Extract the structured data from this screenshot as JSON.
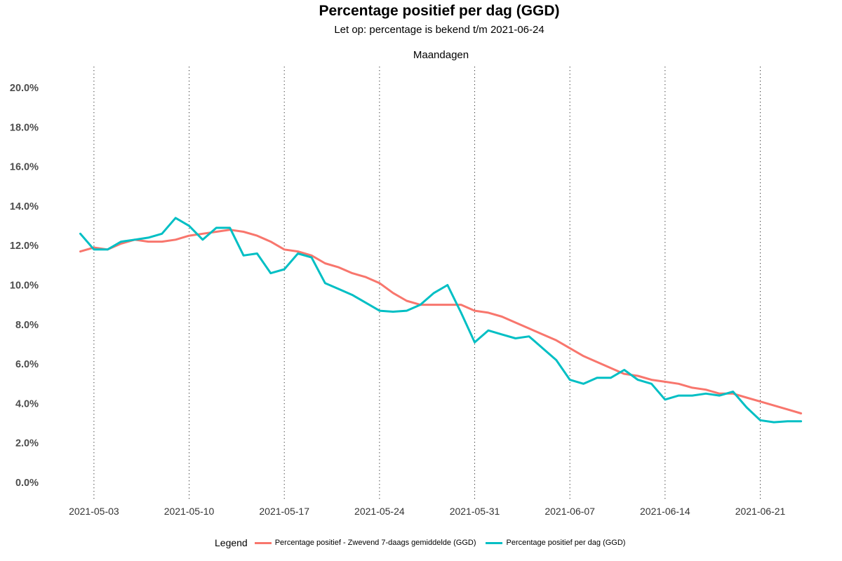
{
  "chart_data": {
    "type": "line",
    "title": "Percentage positief per dag (GGD)",
    "subtitle": "Let op: percentage is bekend t/m 2021-06-24",
    "top_axis_label": "Maandagen",
    "xlabel": "",
    "ylabel": "",
    "ylim": [
      -1,
      21
    ],
    "y_ticks": [
      0,
      2,
      4,
      6,
      8,
      10,
      12,
      14,
      16,
      18,
      20
    ],
    "y_tick_labels": [
      "0.0%",
      "2.0%",
      "4.0%",
      "6.0%",
      "8.0%",
      "10.0%",
      "12.0%",
      "14.0%",
      "16.0%",
      "18.0%",
      "20.0%"
    ],
    "x_start_date": "2021-05-02",
    "x_ticks": [
      "2021-05-03",
      "2021-05-10",
      "2021-05-17",
      "2021-05-24",
      "2021-05-31",
      "2021-06-07",
      "2021-06-14",
      "2021-06-21"
    ],
    "x_tick_day_index": [
      1,
      8,
      15,
      22,
      29,
      36,
      43,
      50
    ],
    "grid": false,
    "legend_position": "bottom",
    "legend_title": "Legend",
    "series": [
      {
        "name": "Percentage positief - Zwevend 7-daags gemiddelde (GGD)",
        "color": "#f8766d",
        "values": [
          11.7,
          11.9,
          11.8,
          12.1,
          12.3,
          12.2,
          12.2,
          12.3,
          12.5,
          12.6,
          12.7,
          12.8,
          12.7,
          12.5,
          12.2,
          11.8,
          11.7,
          11.5,
          11.1,
          10.9,
          10.6,
          10.4,
          10.1,
          9.6,
          9.2,
          9.0,
          9.0,
          9.0,
          9.0,
          8.7,
          8.6,
          8.4,
          8.1,
          7.8,
          7.5,
          7.2,
          6.8,
          6.4,
          6.1,
          5.8,
          5.5,
          5.4,
          5.2,
          5.1,
          5.0,
          4.8,
          4.7,
          4.5,
          4.5,
          4.3,
          4.1,
          3.9,
          3.7,
          3.5
        ]
      },
      {
        "name": "Percentage positief per dag (GGD)",
        "color": "#00bfc4",
        "values": [
          12.6,
          11.8,
          11.8,
          12.2,
          12.3,
          12.4,
          12.6,
          13.4,
          13.0,
          12.3,
          12.9,
          12.9,
          11.5,
          11.6,
          10.6,
          10.8,
          11.6,
          11.4,
          10.1,
          9.8,
          9.5,
          9.1,
          8.7,
          8.65,
          8.7,
          9.0,
          9.6,
          10.0,
          8.6,
          7.1,
          7.7,
          7.5,
          7.3,
          7.4,
          6.8,
          6.2,
          5.2,
          5.0,
          5.3,
          5.3,
          5.7,
          5.2,
          5.0,
          4.2,
          4.4,
          4.4,
          4.5,
          4.4,
          4.6,
          3.8,
          3.15,
          3.05,
          3.1,
          3.1
        ]
      }
    ]
  }
}
